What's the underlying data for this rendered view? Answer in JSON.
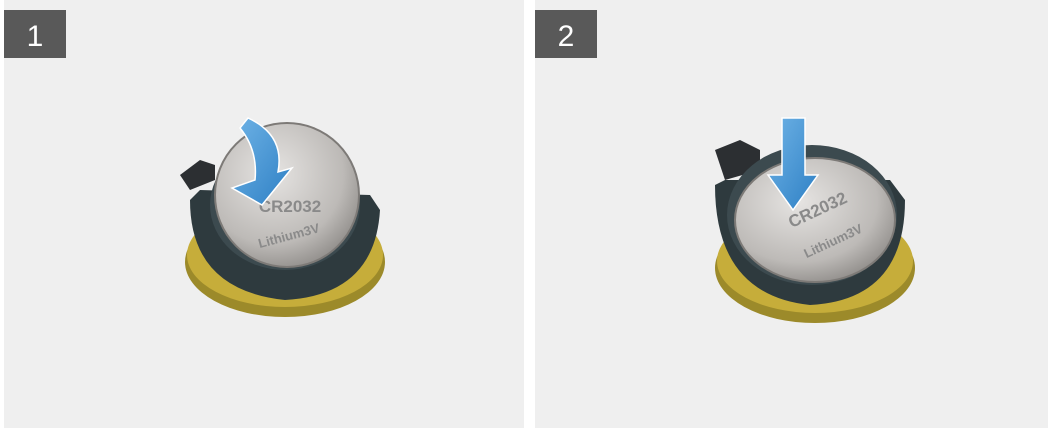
{
  "panels": [
    {
      "step": "1",
      "battery": {
        "model": "CR2032",
        "marking": "Lithium3V"
      }
    },
    {
      "step": "2",
      "battery": {
        "model": "CR2032",
        "marking": "Lithium3V"
      }
    }
  ]
}
